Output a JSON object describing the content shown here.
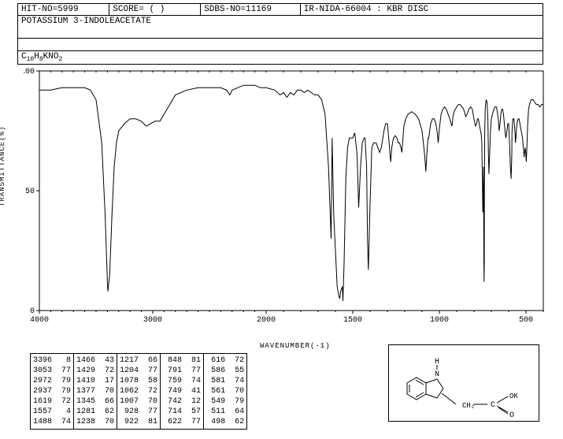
{
  "header": {
    "hit_no": "HIT-NO=5999",
    "score": "SCORE=  (  )",
    "sdbs_no": "SDBS-NO=11169",
    "ir_info": "IR-NIDA-66004 : KBR DISC",
    "title": "POTASSIUM 3-INDOLEACETATE",
    "formula_html": "C<sub>10</sub>H<sub>8</sub>KNO<sub>2</sub>"
  },
  "chart": {
    "type": "line",
    "y_label": "TRANSMITTANCE(%)",
    "x_label": "WAVENUMBER(-1)",
    "xlim": [
      4000,
      400
    ],
    "ylim": [
      0,
      100
    ],
    "x_ticks": [
      4000,
      3000,
      2000,
      1500,
      1000,
      500
    ],
    "y_ticks": [
      0,
      50,
      100
    ],
    "line_color": "#000000",
    "background_color": "#ffffff",
    "axis_color": "#000000",
    "points": [
      [
        4000,
        92
      ],
      [
        3900,
        92
      ],
      [
        3800,
        93
      ],
      [
        3700,
        93
      ],
      [
        3600,
        93
      ],
      [
        3550,
        92
      ],
      [
        3500,
        88
      ],
      [
        3450,
        70
      ],
      [
        3420,
        40
      ],
      [
        3400,
        12
      ],
      [
        3396,
        8
      ],
      [
        3380,
        15
      ],
      [
        3360,
        40
      ],
      [
        3340,
        60
      ],
      [
        3320,
        70
      ],
      [
        3300,
        75
      ],
      [
        3250,
        78
      ],
      [
        3200,
        80
      ],
      [
        3150,
        80
      ],
      [
        3100,
        79
      ],
      [
        3060,
        77
      ],
      [
        3053,
        77
      ],
      [
        3020,
        78
      ],
      [
        2980,
        79
      ],
      [
        2972,
        79
      ],
      [
        2950,
        79
      ],
      [
        2937,
        79
      ],
      [
        2900,
        82
      ],
      [
        2850,
        86
      ],
      [
        2800,
        90
      ],
      [
        2700,
        92
      ],
      [
        2600,
        93
      ],
      [
        2500,
        93
      ],
      [
        2400,
        93
      ],
      [
        2350,
        92
      ],
      [
        2320,
        90
      ],
      [
        2300,
        92
      ],
      [
        2250,
        93
      ],
      [
        2200,
        94
      ],
      [
        2150,
        94
      ],
      [
        2100,
        94
      ],
      [
        2050,
        93
      ],
      [
        2000,
        93
      ],
      [
        1950,
        92
      ],
      [
        1920,
        90
      ],
      [
        1900,
        91
      ],
      [
        1880,
        89
      ],
      [
        1860,
        91
      ],
      [
        1840,
        90
      ],
      [
        1820,
        92
      ],
      [
        1800,
        92
      ],
      [
        1780,
        91
      ],
      [
        1760,
        92
      ],
      [
        1740,
        91
      ],
      [
        1720,
        90
      ],
      [
        1700,
        90
      ],
      [
        1680,
        88
      ],
      [
        1660,
        82
      ],
      [
        1640,
        60
      ],
      [
        1625,
        30
      ],
      [
        1619,
        72
      ],
      [
        1610,
        40
      ],
      [
        1600,
        25
      ],
      [
        1590,
        10
      ],
      [
        1580,
        6
      ],
      [
        1575,
        5
      ],
      [
        1570,
        8
      ],
      [
        1560,
        10
      ],
      [
        1557,
        4
      ],
      [
        1550,
        20
      ],
      [
        1540,
        55
      ],
      [
        1530,
        68
      ],
      [
        1520,
        72
      ],
      [
        1500,
        72
      ],
      [
        1490,
        74
      ],
      [
        1488,
        74
      ],
      [
        1475,
        65
      ],
      [
        1466,
        43
      ],
      [
        1455,
        60
      ],
      [
        1445,
        70
      ],
      [
        1435,
        72
      ],
      [
        1429,
        72
      ],
      [
        1420,
        60
      ],
      [
        1415,
        30
      ],
      [
        1410,
        17
      ],
      [
        1400,
        45
      ],
      [
        1390,
        68
      ],
      [
        1380,
        70
      ],
      [
        1377,
        70
      ],
      [
        1365,
        70
      ],
      [
        1355,
        68
      ],
      [
        1350,
        67
      ],
      [
        1345,
        66
      ],
      [
        1335,
        68
      ],
      [
        1320,
        75
      ],
      [
        1310,
        78
      ],
      [
        1300,
        78
      ],
      [
        1290,
        70
      ],
      [
        1285,
        65
      ],
      [
        1281,
        62
      ],
      [
        1275,
        68
      ],
      [
        1265,
        72
      ],
      [
        1255,
        73
      ],
      [
        1245,
        72
      ],
      [
        1240,
        71
      ],
      [
        1238,
        70
      ],
      [
        1230,
        70
      ],
      [
        1222,
        68
      ],
      [
        1217,
        66
      ],
      [
        1210,
        72
      ],
      [
        1205,
        77
      ],
      [
        1204,
        77
      ],
      [
        1195,
        80
      ],
      [
        1180,
        82
      ],
      [
        1160,
        83
      ],
      [
        1140,
        82
      ],
      [
        1120,
        80
      ],
      [
        1100,
        75
      ],
      [
        1085,
        65
      ],
      [
        1078,
        58
      ],
      [
        1070,
        68
      ],
      [
        1065,
        72
      ],
      [
        1062,
        72
      ],
      [
        1050,
        78
      ],
      [
        1040,
        80
      ],
      [
        1030,
        80
      ],
      [
        1020,
        78
      ],
      [
        1012,
        74
      ],
      [
        1007,
        70
      ],
      [
        1000,
        76
      ],
      [
        990,
        82
      ],
      [
        980,
        84
      ],
      [
        970,
        85
      ],
      [
        960,
        84
      ],
      [
        950,
        82
      ],
      [
        940,
        80
      ],
      [
        932,
        78
      ],
      [
        928,
        77
      ],
      [
        925,
        78
      ],
      [
        922,
        81
      ],
      [
        915,
        83
      ],
      [
        900,
        85
      ],
      [
        890,
        86
      ],
      [
        880,
        86
      ],
      [
        870,
        85
      ],
      [
        860,
        84
      ],
      [
        852,
        82
      ],
      [
        848,
        81
      ],
      [
        840,
        82
      ],
      [
        830,
        84
      ],
      [
        820,
        85
      ],
      [
        810,
        84
      ],
      [
        800,
        80
      ],
      [
        795,
        78
      ],
      [
        791,
        77
      ],
      [
        785,
        78
      ],
      [
        780,
        80
      ],
      [
        775,
        80
      ],
      [
        770,
        78
      ],
      [
        765,
        76
      ],
      [
        760,
        74
      ],
      [
        759,
        74
      ],
      [
        755,
        70
      ],
      [
        752,
        55
      ],
      [
        750,
        45
      ],
      [
        749,
        41
      ],
      [
        748,
        45
      ],
      [
        746,
        55
      ],
      [
        745,
        60
      ],
      [
        744,
        40
      ],
      [
        743,
        20
      ],
      [
        742,
        12
      ],
      [
        741,
        20
      ],
      [
        740,
        50
      ],
      [
        738,
        75
      ],
      [
        735,
        85
      ],
      [
        730,
        88
      ],
      [
        725,
        87
      ],
      [
        720,
        80
      ],
      [
        717,
        65
      ],
      [
        714,
        57
      ],
      [
        710,
        65
      ],
      [
        705,
        75
      ],
      [
        700,
        80
      ],
      [
        690,
        83
      ],
      [
        680,
        85
      ],
      [
        670,
        85
      ],
      [
        660,
        80
      ],
      [
        655,
        75
      ],
      [
        650,
        78
      ],
      [
        645,
        82
      ],
      [
        640,
        84
      ],
      [
        635,
        84
      ],
      [
        630,
        82
      ],
      [
        625,
        78
      ],
      [
        620,
        74
      ],
      [
        616,
        72
      ],
      [
        610,
        75
      ],
      [
        605,
        78
      ],
      [
        600,
        78
      ],
      [
        595,
        70
      ],
      [
        590,
        60
      ],
      [
        586,
        55
      ],
      [
        582,
        65
      ],
      [
        581,
        74
      ],
      [
        578,
        78
      ],
      [
        575,
        80
      ],
      [
        570,
        80
      ],
      [
        565,
        76
      ],
      [
        562,
        72
      ],
      [
        561,
        70
      ],
      [
        558,
        72
      ],
      [
        555,
        76
      ],
      [
        552,
        78
      ],
      [
        550,
        79
      ],
      [
        549,
        79
      ],
      [
        545,
        80
      ],
      [
        540,
        80
      ],
      [
        535,
        78
      ],
      [
        530,
        76
      ],
      [
        525,
        74
      ],
      [
        520,
        72
      ],
      [
        515,
        68
      ],
      [
        512,
        65
      ],
      [
        511,
        64
      ],
      [
        508,
        66
      ],
      [
        505,
        68
      ],
      [
        502,
        66
      ],
      [
        500,
        64
      ],
      [
        498,
        62
      ],
      [
        495,
        68
      ],
      [
        490,
        78
      ],
      [
        485,
        84
      ],
      [
        480,
        86
      ],
      [
        470,
        88
      ],
      [
        460,
        88
      ],
      [
        450,
        87
      ],
      [
        440,
        86
      ],
      [
        430,
        86
      ],
      [
        420,
        85
      ],
      [
        410,
        86
      ],
      [
        400,
        86
      ]
    ]
  },
  "peak_columns": [
    [
      [
        3396,
        8
      ],
      [
        3053,
        77
      ],
      [
        2972,
        79
      ],
      [
        2937,
        79
      ],
      [
        1619,
        72
      ],
      [
        1557,
        4
      ],
      [
        1488,
        74
      ]
    ],
    [
      [
        1466,
        43
      ],
      [
        1429,
        72
      ],
      [
        1410,
        17
      ],
      [
        1377,
        70
      ],
      [
        1345,
        66
      ],
      [
        1281,
        62
      ],
      [
        1238,
        70
      ]
    ],
    [
      [
        1217,
        66
      ],
      [
        1204,
        77
      ],
      [
        1078,
        58
      ],
      [
        1062,
        72
      ],
      [
        1007,
        70
      ],
      [
        928,
        77
      ],
      [
        922,
        81
      ]
    ],
    [
      [
        848,
        81
      ],
      [
        791,
        77
      ],
      [
        759,
        74
      ],
      [
        749,
        41
      ],
      [
        742,
        12
      ],
      [
        714,
        57
      ],
      [
        622,
        77
      ]
    ],
    [
      [
        616,
        72
      ],
      [
        586,
        55
      ],
      [
        581,
        74
      ],
      [
        561,
        70
      ],
      [
        549,
        79
      ],
      [
        511,
        64
      ],
      [
        498,
        62
      ]
    ]
  ],
  "molecule": {
    "labels": {
      "H": "H",
      "N": "N",
      "CH2": "CH₂",
      "C": "C",
      "OK": "OK",
      "O": "O"
    },
    "stroke": "#000000"
  }
}
